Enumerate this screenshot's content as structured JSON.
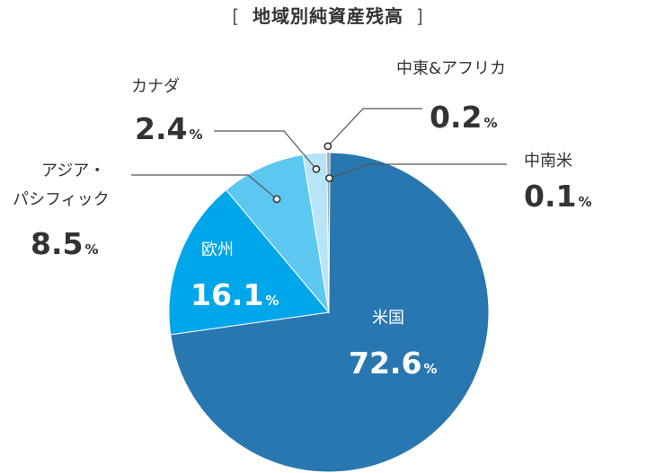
{
  "chart_data": {
    "type": "pie",
    "title": "地域別純資産残高",
    "title_brackets": [
      "[",
      "]"
    ],
    "percent_sign": "%",
    "slices": [
      {
        "name": "米国",
        "value": 72.6,
        "value_label": "72.6",
        "color": "#2877b0"
      },
      {
        "name": "欧州",
        "value": 16.1,
        "value_label": "16.1",
        "color": "#00a6ea"
      },
      {
        "name": "アジア・パシフィック",
        "name_lines": [
          "アジア・",
          "パシフィック"
        ],
        "value": 8.5,
        "value_label": "8.5",
        "color": "#5cc8f2"
      },
      {
        "name": "カナダ",
        "value": 2.4,
        "value_label": "2.4",
        "color": "#b8e4f8"
      },
      {
        "name": "中東&アフリカ",
        "value": 0.2,
        "value_label": "0.2",
        "color": "#8a8a8a"
      },
      {
        "name": "中南米",
        "value": 0.1,
        "value_label": "0.1",
        "color": "#555555"
      }
    ]
  }
}
